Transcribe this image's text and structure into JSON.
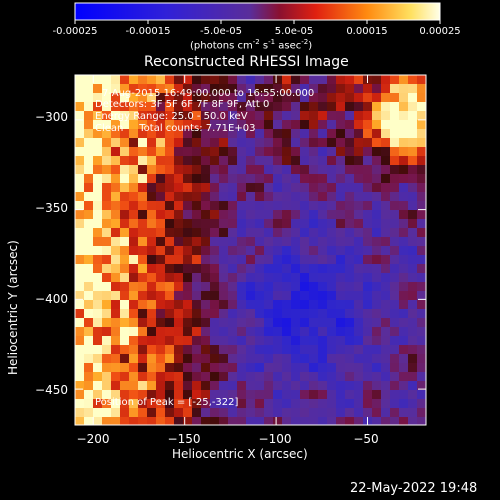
{
  "colorbar": {
    "ticks": [
      "-0.00025",
      "-0.00015",
      "-5.0e-05",
      "5.0e-05",
      "0.00015",
      "0.00025"
    ],
    "tick_values": [
      -0.00025,
      -0.00015,
      -5e-05,
      5e-05,
      0.00015,
      0.00025
    ],
    "range": [
      -0.00025,
      0.00025
    ],
    "units_prefix": "(photons cm",
    "units_exp1": "-2",
    "units_mid1": " s",
    "units_exp2": "-1",
    "units_mid2": " asec",
    "units_exp3": "-2",
    "units_suffix": ")"
  },
  "chart_data": {
    "type": "heatmap",
    "title": "Reconstructed RHESSI Image",
    "xlabel": "Heliocentric X (arcsec)",
    "ylabel": "Heliocentric Y (arcsec)",
    "xlim": [
      -210,
      -18
    ],
    "ylim": [
      -470,
      -275
    ],
    "x_ticks": [
      -200,
      -150,
      -100,
      -50
    ],
    "y_ticks": [
      -300,
      -350,
      -400,
      -450
    ],
    "x_tick_labels": [
      "−200",
      "−150",
      "−100",
      "−50"
    ],
    "y_tick_labels": [
      "−300",
      "−350",
      "−400",
      "−450"
    ],
    "peak_position": [
      -25,
      -322
    ],
    "colors": {
      "negative": "#0000ff",
      "zero": "#5a2d9a",
      "positive_mid": "#e02010",
      "positive_high": "#ffffa0"
    }
  },
  "info": {
    "time": "7-Aug-2015 16:49:00.000 to 16:55:00.000",
    "detectors": "Detectors: 3F 5F 6F 7F 8F 9F, Att 0",
    "energy": "Energy Range: 25.0 - 50.0 keV",
    "clean": "Clean     Total counts: 7.71E+03",
    "peak": "Position of Peak = [-25,-322]"
  },
  "footer": {
    "date": "22-May-2022 19:48"
  }
}
